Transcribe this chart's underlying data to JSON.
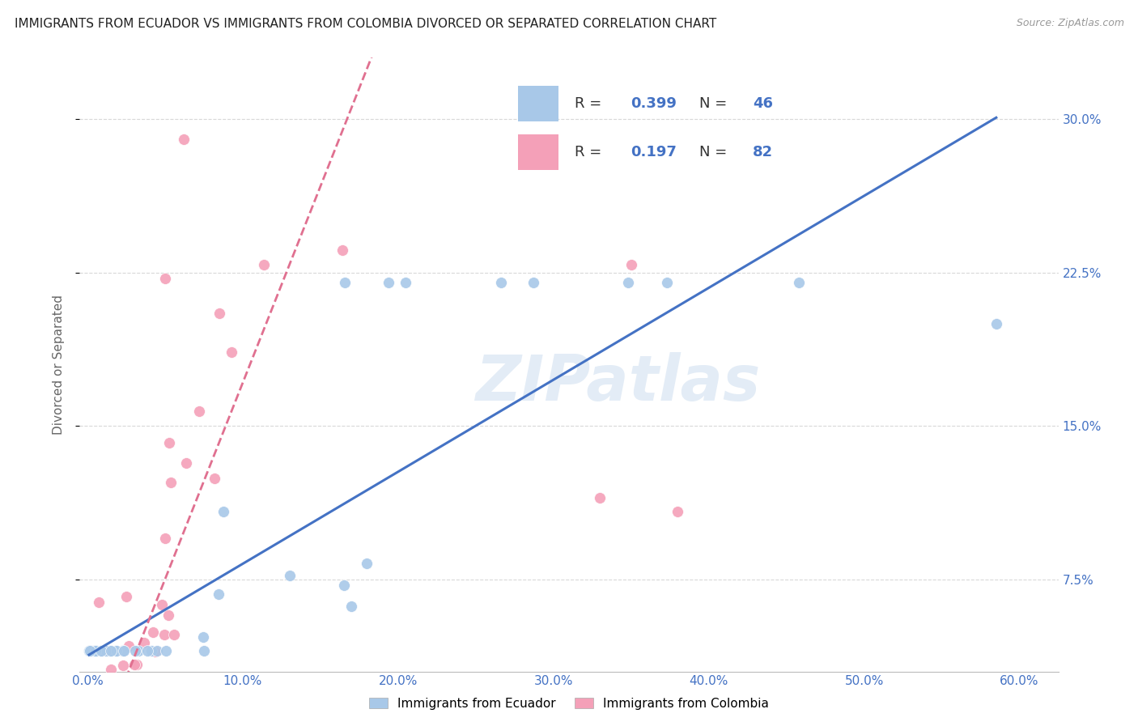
{
  "title": "IMMIGRANTS FROM ECUADOR VS IMMIGRANTS FROM COLOMBIA DIVORCED OR SEPARATED CORRELATION CHART",
  "source": "Source: ZipAtlas.com",
  "ylabel": "Divorced or Separated",
  "xlim": [
    -0.005,
    0.625
  ],
  "ylim": [
    0.03,
    0.33
  ],
  "ecuador_color": "#a8c8e8",
  "colombia_color": "#f4a0b8",
  "ecuador_line_color": "#4472c4",
  "colombia_line_color": "#e07090",
  "ecuador_R": 0.399,
  "ecuador_N": 46,
  "colombia_R": 0.197,
  "colombia_N": 82,
  "legend_label_ecuador": "Immigrants from Ecuador",
  "legend_label_colombia": "Immigrants from Colombia",
  "watermark": "ZIPatlas",
  "background_color": "#ffffff",
  "grid_color": "#d8d8d8",
  "title_color": "#222222",
  "tick_label_color": "#4472c4",
  "ytick_vals": [
    0.075,
    0.15,
    0.225,
    0.3
  ],
  "ytick_labels": [
    "7.5%",
    "15.0%",
    "22.5%",
    "30.0%"
  ],
  "xtick_vals": [
    0.0,
    0.1,
    0.2,
    0.3,
    0.4,
    0.5,
    0.6
  ],
  "xtick_labels": [
    "0.0%",
    "10.0%",
    "20.0%",
    "30.0%",
    "40.0%",
    "50.0%",
    "60.0%"
  ]
}
